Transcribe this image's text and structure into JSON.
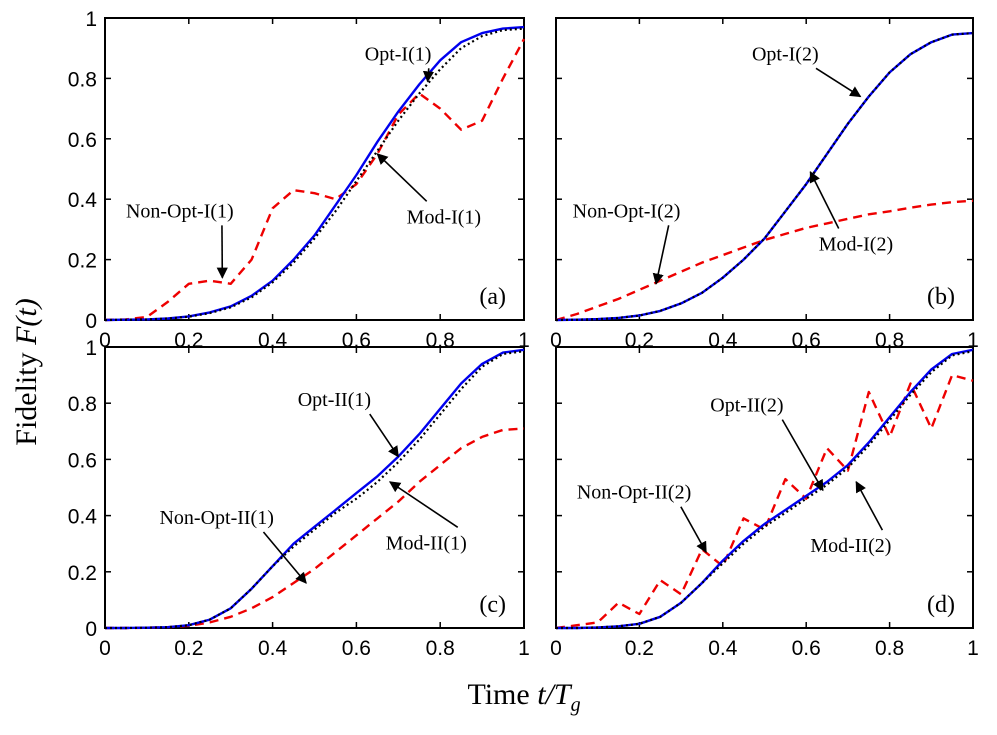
{
  "figure": {
    "ylabel_text": "Fidelity ",
    "ylabel_math": "F(t)",
    "xlabel_text": "Time ",
    "xlabel_math": "t/T",
    "xlabel_sub": "g"
  },
  "chart_data": [
    {
      "panel": "(a)",
      "type": "line",
      "xlim": [
        0,
        1
      ],
      "ylim": [
        0,
        1
      ],
      "xticks": [
        "0",
        "0.2",
        "0.4",
        "0.6",
        "0.8",
        "1"
      ],
      "yticks": [
        "0",
        "0.2",
        "0.4",
        "0.6",
        "0.8",
        "1"
      ],
      "x": [
        0,
        0.05,
        0.1,
        0.15,
        0.2,
        0.25,
        0.3,
        0.35,
        0.4,
        0.45,
        0.5,
        0.55,
        0.6,
        0.65,
        0.7,
        0.75,
        0.8,
        0.85,
        0.9,
        0.95,
        1.0
      ],
      "series": [
        {
          "name": "Opt-I(1)",
          "color": "#0000ee",
          "dash": "solid",
          "values": [
            0,
            0.001,
            0.002,
            0.005,
            0.012,
            0.025,
            0.045,
            0.08,
            0.13,
            0.2,
            0.28,
            0.38,
            0.48,
            0.59,
            0.69,
            0.78,
            0.86,
            0.92,
            0.95,
            0.965,
            0.97
          ]
        },
        {
          "name": "Mod-I(1)",
          "color": "#000000",
          "dash": "dot",
          "values": [
            0,
            0.001,
            0.002,
            0.005,
            0.011,
            0.023,
            0.042,
            0.075,
            0.125,
            0.19,
            0.27,
            0.36,
            0.46,
            0.56,
            0.66,
            0.75,
            0.83,
            0.9,
            0.94,
            0.96,
            0.965
          ]
        },
        {
          "name": "Non-Opt-I(1)",
          "color": "#ee0000",
          "dash": "dash",
          "values": [
            0,
            0.002,
            0.01,
            0.06,
            0.12,
            0.13,
            0.12,
            0.2,
            0.37,
            0.43,
            0.42,
            0.4,
            0.45,
            0.55,
            0.68,
            0.75,
            0.7,
            0.63,
            0.66,
            0.8,
            0.93
          ]
        }
      ],
      "annotations": [
        {
          "text": "Opt-I(1)",
          "tx": 0.62,
          "ty": 0.86,
          "ax": 0.77,
          "ay": 0.79
        },
        {
          "text": "Mod-I(1)",
          "tx": 0.72,
          "ty": 0.32,
          "ax": 0.65,
          "ay": 0.55
        },
        {
          "text": "Non-Opt-I(1)",
          "tx": 0.05,
          "ty": 0.34,
          "ax": 0.28,
          "ay": 0.14
        }
      ]
    },
    {
      "panel": "(b)",
      "type": "line",
      "xlim": [
        0,
        1
      ],
      "ylim": [
        0,
        1
      ],
      "xticks": [
        "0",
        "0.2",
        "0.4",
        "0.6",
        "0.8",
        "1"
      ],
      "yticks": [
        "0",
        "0.2",
        "0.4",
        "0.6",
        "0.8",
        "1"
      ],
      "x": [
        0,
        0.05,
        0.1,
        0.15,
        0.2,
        0.25,
        0.3,
        0.35,
        0.4,
        0.45,
        0.5,
        0.55,
        0.6,
        0.65,
        0.7,
        0.75,
        0.8,
        0.85,
        0.9,
        0.95,
        1.0
      ],
      "series": [
        {
          "name": "Opt-I(2)",
          "color": "#0000ee",
          "dash": "solid",
          "values": [
            0,
            0.001,
            0.003,
            0.007,
            0.015,
            0.03,
            0.055,
            0.09,
            0.14,
            0.2,
            0.27,
            0.36,
            0.45,
            0.55,
            0.65,
            0.74,
            0.82,
            0.88,
            0.92,
            0.945,
            0.95
          ]
        },
        {
          "name": "Mod-I(2)",
          "color": "#000000",
          "dash": "dot",
          "values": [
            0,
            0.001,
            0.003,
            0.007,
            0.015,
            0.03,
            0.055,
            0.09,
            0.14,
            0.2,
            0.27,
            0.36,
            0.45,
            0.55,
            0.65,
            0.74,
            0.82,
            0.88,
            0.92,
            0.945,
            0.95
          ]
        },
        {
          "name": "Non-Opt-I(2)",
          "color": "#ee0000",
          "dash": "dash",
          "values": [
            0,
            0.02,
            0.045,
            0.07,
            0.1,
            0.13,
            0.16,
            0.19,
            0.215,
            0.24,
            0.265,
            0.285,
            0.305,
            0.32,
            0.335,
            0.35,
            0.36,
            0.372,
            0.382,
            0.39,
            0.395
          ]
        }
      ],
      "annotations": [
        {
          "text": "Opt-I(2)",
          "tx": 0.47,
          "ty": 0.86,
          "ax": 0.73,
          "ay": 0.74
        },
        {
          "text": "Mod-I(2)",
          "tx": 0.63,
          "ty": 0.23,
          "ax": 0.61,
          "ay": 0.49
        },
        {
          "text": "Non-Opt-I(2)",
          "tx": 0.04,
          "ty": 0.34,
          "ax": 0.24,
          "ay": 0.12
        }
      ]
    },
    {
      "panel": "(c)",
      "type": "line",
      "xlim": [
        0,
        1
      ],
      "ylim": [
        0,
        1
      ],
      "xticks": [
        "0",
        "0.2",
        "0.4",
        "0.6",
        "0.8",
        "1"
      ],
      "yticks": [
        "0",
        "0.2",
        "0.4",
        "0.6",
        "0.8",
        "1"
      ],
      "x": [
        0,
        0.05,
        0.1,
        0.15,
        0.2,
        0.25,
        0.3,
        0.35,
        0.4,
        0.45,
        0.5,
        0.55,
        0.6,
        0.65,
        0.7,
        0.75,
        0.8,
        0.85,
        0.9,
        0.95,
        1.0
      ],
      "series": [
        {
          "name": "Opt-II(1)",
          "color": "#0000ee",
          "dash": "solid",
          "values": [
            0,
            0,
            0.001,
            0.003,
            0.01,
            0.03,
            0.07,
            0.14,
            0.22,
            0.3,
            0.36,
            0.42,
            0.48,
            0.54,
            0.61,
            0.69,
            0.78,
            0.87,
            0.94,
            0.98,
            0.99
          ]
        },
        {
          "name": "Mod-II(1)",
          "color": "#000000",
          "dash": "dot",
          "values": [
            0,
            0,
            0.001,
            0.003,
            0.01,
            0.03,
            0.07,
            0.14,
            0.22,
            0.29,
            0.35,
            0.41,
            0.46,
            0.52,
            0.59,
            0.67,
            0.76,
            0.85,
            0.93,
            0.975,
            0.985
          ]
        },
        {
          "name": "Non-Opt-II(1)",
          "color": "#ee0000",
          "dash": "dash",
          "values": [
            0,
            0,
            0.001,
            0.003,
            0.008,
            0.02,
            0.04,
            0.07,
            0.11,
            0.16,
            0.21,
            0.27,
            0.33,
            0.39,
            0.45,
            0.52,
            0.58,
            0.64,
            0.68,
            0.705,
            0.71
          ]
        }
      ],
      "annotations": [
        {
          "text": "Opt-II(1)",
          "tx": 0.46,
          "ty": 0.79,
          "ax": 0.7,
          "ay": 0.61
        },
        {
          "text": "Mod-II(1)",
          "tx": 0.67,
          "ty": 0.28,
          "ax": 0.68,
          "ay": 0.52
        },
        {
          "text": "Non-Opt-II(1)",
          "tx": 0.13,
          "ty": 0.37,
          "ax": 0.48,
          "ay": 0.16
        }
      ]
    },
    {
      "panel": "(d)",
      "type": "line",
      "xlim": [
        0,
        1
      ],
      "ylim": [
        0,
        1
      ],
      "xticks": [
        "0",
        "0.2",
        "0.4",
        "0.6",
        "0.8",
        "1"
      ],
      "yticks": [
        "0",
        "0.2",
        "0.4",
        "0.6",
        "0.8",
        "1"
      ],
      "x": [
        0,
        0.05,
        0.1,
        0.15,
        0.2,
        0.25,
        0.3,
        0.35,
        0.4,
        0.45,
        0.5,
        0.55,
        0.6,
        0.65,
        0.7,
        0.75,
        0.8,
        0.85,
        0.9,
        0.95,
        1.0
      ],
      "series": [
        {
          "name": "Opt-II(2)",
          "color": "#0000ee",
          "dash": "solid",
          "values": [
            0,
            0,
            0.002,
            0.006,
            0.015,
            0.04,
            0.09,
            0.16,
            0.24,
            0.31,
            0.37,
            0.42,
            0.47,
            0.52,
            0.58,
            0.66,
            0.75,
            0.84,
            0.92,
            0.975,
            0.99
          ]
        },
        {
          "name": "Mod-II(2)",
          "color": "#000000",
          "dash": "dot",
          "values": [
            0,
            0,
            0.002,
            0.006,
            0.015,
            0.04,
            0.09,
            0.16,
            0.23,
            0.3,
            0.36,
            0.41,
            0.46,
            0.51,
            0.57,
            0.65,
            0.74,
            0.83,
            0.91,
            0.97,
            0.985
          ]
        },
        {
          "name": "Non-Opt-II(2)",
          "color": "#ee0000",
          "dash": "dash",
          "values": [
            0,
            0.01,
            0.02,
            0.09,
            0.05,
            0.17,
            0.12,
            0.28,
            0.22,
            0.39,
            0.35,
            0.53,
            0.46,
            0.64,
            0.56,
            0.84,
            0.68,
            0.87,
            0.71,
            0.9,
            0.88
          ]
        }
      ],
      "annotations": [
        {
          "text": "Opt-II(2)",
          "tx": 0.37,
          "ty": 0.77,
          "ax": 0.64,
          "ay": 0.49
        },
        {
          "text": "Mod-II(2)",
          "tx": 0.61,
          "ty": 0.27,
          "ax": 0.72,
          "ay": 0.52
        },
        {
          "text": "Non-Opt-II(2)",
          "tx": 0.05,
          "ty": 0.46,
          "ax": 0.36,
          "ay": 0.27
        }
      ]
    }
  ]
}
